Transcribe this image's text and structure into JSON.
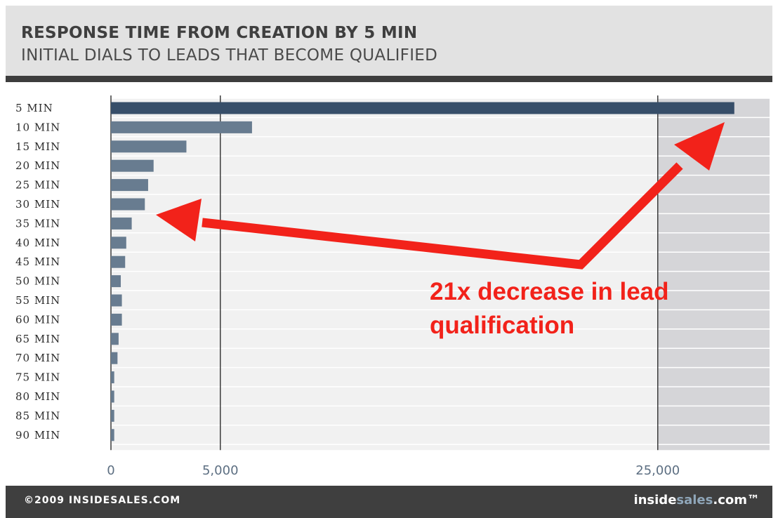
{
  "header": {
    "title": "RESPONSE TIME FROM CREATION BY 5 MIN",
    "subtitle": "INITIAL DIALS TO LEADS THAT BECOME QUALIFIED"
  },
  "chart_data": {
    "type": "bar",
    "orientation": "horizontal",
    "categories": [
      "5 MIN",
      "10 MIN",
      "15 MIN",
      "20 MIN",
      "25 MIN",
      "30 MIN",
      "35 MIN",
      "40 MIN",
      "45 MIN",
      "50 MIN",
      "55 MIN",
      "60 MIN",
      "65 MIN",
      "70 MIN",
      "75 MIN",
      "80 MIN",
      "85 MIN",
      "90 MIN"
    ],
    "values": [
      28500,
      6450,
      3450,
      1950,
      1700,
      1550,
      950,
      700,
      650,
      450,
      500,
      500,
      350,
      300,
      150,
      150,
      150,
      150
    ],
    "xlim": [
      0,
      30000
    ],
    "xticks": [
      0,
      5000,
      25000
    ],
    "xtick_labels": [
      "0",
      "5,000",
      "25,000"
    ],
    "grid": true,
    "highlight_from": 25000,
    "annotation": {
      "lines": [
        "21x decrease in lead",
        "qualification"
      ],
      "color": "#f2221a"
    },
    "colors": {
      "first_bar": "#374e69",
      "bars": "#687c90",
      "plot_bg": "#f1f1f1",
      "highlight_bg": "#d5d5d8",
      "arrows": "#f2221a"
    }
  },
  "footer": {
    "copyright": "©2009 INSIDESALES.COM",
    "brand_part1": "inside",
    "brand_part2": "sales",
    "brand_part3": ".com™"
  }
}
